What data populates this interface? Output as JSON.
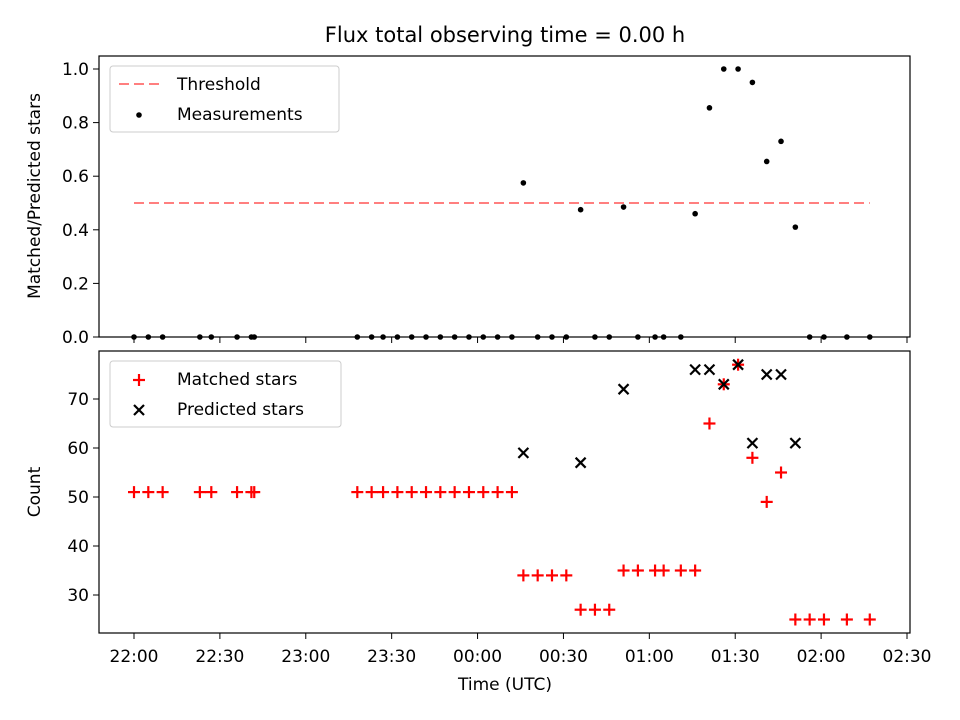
{
  "chart_data": [
    {
      "type": "scatter",
      "title": "Flux total observing time = 0.00 h",
      "ylabel": "Matched/Predicted stars",
      "xlabel": "",
      "ylim": [
        0,
        1.05
      ],
      "yticks": [
        "0.0",
        "0.2",
        "0.4",
        "0.6",
        "0.8",
        "1.0"
      ],
      "grid": false,
      "legend_position": "upper-left",
      "threshold": {
        "name": "Threshold",
        "value": 0.5,
        "x_start": "22:00",
        "x_end": "02:17",
        "color": "#ff7f7f",
        "style": "dashed"
      },
      "series": [
        {
          "name": "Measurements",
          "marker": "dot",
          "color": "#000000",
          "points": [
            [
              "22:00",
              0
            ],
            [
              "22:05",
              0
            ],
            [
              "22:10",
              0
            ],
            [
              "22:23",
              0
            ],
            [
              "22:27",
              0
            ],
            [
              "22:36",
              0
            ],
            [
              "22:41",
              0
            ],
            [
              "22:42",
              0
            ],
            [
              "23:18",
              0
            ],
            [
              "23:23",
              0
            ],
            [
              "23:27",
              0
            ],
            [
              "23:32",
              0
            ],
            [
              "23:37",
              0
            ],
            [
              "23:42",
              0
            ],
            [
              "23:47",
              0
            ],
            [
              "23:52",
              0
            ],
            [
              "23:57",
              0
            ],
            [
              "00:02",
              0
            ],
            [
              "00:07",
              0
            ],
            [
              "00:12",
              0
            ],
            [
              "00:16",
              0.575
            ],
            [
              "00:21",
              0
            ],
            [
              "00:26",
              0
            ],
            [
              "00:31",
              0
            ],
            [
              "00:36",
              0.475
            ],
            [
              "00:41",
              0
            ],
            [
              "00:46",
              0
            ],
            [
              "00:51",
              0.485
            ],
            [
              "00:56",
              0
            ],
            [
              "01:02",
              0
            ],
            [
              "01:05",
              0
            ],
            [
              "01:11",
              0
            ],
            [
              "01:16",
              0.46
            ],
            [
              "01:21",
              0.855
            ],
            [
              "01:26",
              1.0
            ],
            [
              "01:31",
              1.0
            ],
            [
              "01:36",
              0.95
            ],
            [
              "01:41",
              0.655
            ],
            [
              "01:46",
              0.73
            ],
            [
              "01:51",
              0.41
            ],
            [
              "01:56",
              0
            ],
            [
              "02:01",
              0
            ],
            [
              "02:09",
              0
            ],
            [
              "02:17",
              0
            ]
          ]
        }
      ]
    },
    {
      "type": "scatter",
      "title": "",
      "ylabel": "Count",
      "xlabel": "Time (UTC)",
      "ylim": [
        22,
        80
      ],
      "yticks": [
        "30",
        "40",
        "50",
        "60",
        "70"
      ],
      "xlim": [
        "21:48",
        "02:30"
      ],
      "xticks": [
        "22:00",
        "22:30",
        "23:00",
        "23:30",
        "00:00",
        "00:30",
        "01:00",
        "01:30",
        "02:00",
        "02:30"
      ],
      "grid": false,
      "legend_position": "upper-left",
      "series": [
        {
          "name": "Matched stars",
          "marker": "plus",
          "color": "#ff0000",
          "points": [
            [
              "22:00",
              51
            ],
            [
              "22:05",
              51
            ],
            [
              "22:10",
              51
            ],
            [
              "22:23",
              51
            ],
            [
              "22:27",
              51
            ],
            [
              "22:36",
              51
            ],
            [
              "22:41",
              51
            ],
            [
              "22:42",
              51
            ],
            [
              "23:18",
              51
            ],
            [
              "23:23",
              51
            ],
            [
              "23:27",
              51
            ],
            [
              "23:32",
              51
            ],
            [
              "23:37",
              51
            ],
            [
              "23:42",
              51
            ],
            [
              "23:47",
              51
            ],
            [
              "23:52",
              51
            ],
            [
              "23:57",
              51
            ],
            [
              "00:02",
              51
            ],
            [
              "00:07",
              51
            ],
            [
              "00:12",
              51
            ],
            [
              "00:16",
              34
            ],
            [
              "00:21",
              34
            ],
            [
              "00:26",
              34
            ],
            [
              "00:31",
              34
            ],
            [
              "00:36",
              27
            ],
            [
              "00:41",
              27
            ],
            [
              "00:46",
              27
            ],
            [
              "00:51",
              35
            ],
            [
              "00:56",
              35
            ],
            [
              "01:02",
              35
            ],
            [
              "01:05",
              35
            ],
            [
              "01:11",
              35
            ],
            [
              "01:16",
              35
            ],
            [
              "01:21",
              65
            ],
            [
              "01:26",
              73
            ],
            [
              "01:31",
              77
            ],
            [
              "01:36",
              58
            ],
            [
              "01:41",
              49
            ],
            [
              "01:46",
              55
            ],
            [
              "01:51",
              25
            ],
            [
              "01:56",
              25
            ],
            [
              "02:01",
              25
            ],
            [
              "02:09",
              25
            ],
            [
              "02:17",
              25
            ]
          ]
        },
        {
          "name": "Predicted stars",
          "marker": "x",
          "color": "#000000",
          "points": [
            [
              "00:16",
              59
            ],
            [
              "00:36",
              57
            ],
            [
              "00:51",
              72
            ],
            [
              "01:16",
              76
            ],
            [
              "01:21",
              76
            ],
            [
              "01:26",
              73
            ],
            [
              "01:31",
              77
            ],
            [
              "01:36",
              61
            ],
            [
              "01:41",
              75
            ],
            [
              "01:46",
              75
            ],
            [
              "01:51",
              61
            ]
          ]
        }
      ]
    }
  ]
}
